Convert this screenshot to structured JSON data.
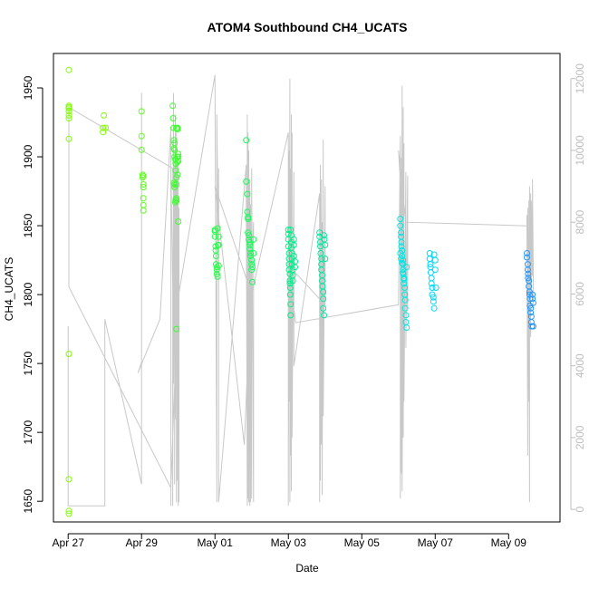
{
  "chart_data": {
    "type": "scatter",
    "title": "ATOM4 Southbound CH4_UCATS",
    "xlabel": "Date",
    "ylabel": "CH4_UCATS",
    "x_ticks": [
      {
        "label": "Apr 27",
        "day": 27
      },
      {
        "label": "Apr 29",
        "day": 29
      },
      {
        "label": "May 01",
        "day": 31
      },
      {
        "label": "May 03",
        "day": 33
      },
      {
        "label": "May 05",
        "day": 35
      },
      {
        "label": "May 07",
        "day": 37
      },
      {
        "label": "May 09",
        "day": 39
      }
    ],
    "y_ticks": [
      1650,
      1700,
      1750,
      1800,
      1850,
      1900,
      1950
    ],
    "y2_ticks": [
      0,
      2000,
      4000,
      6000,
      8000,
      10000,
      12000
    ],
    "xlim_day": [
      26.6,
      40.4
    ],
    "ylim": [
      1635,
      1975
    ],
    "y2lim": [
      -350,
      12700
    ],
    "colors": {
      "axis": "#000000",
      "right_axis": "#bdbdbd",
      "altitude_line": "#c8c8c8"
    },
    "series": [
      {
        "color": "#7fff00",
        "x": [
          27.02,
          27.02,
          27.02,
          27.02,
          27.02,
          27.02,
          27.02,
          27.02,
          27.02,
          27.02,
          27.02,
          27.02,
          27.95,
          27.95,
          27.97,
          28.02
        ],
        "y": [
          1963,
          1937,
          1935,
          1933,
          1928,
          1913,
          1757,
          1666,
          1643,
          1641,
          1936,
          1930,
          1921,
          1918,
          1930,
          1921
        ]
      },
      {
        "color": "#5cff1a",
        "x": [
          29.0,
          29.0,
          29.0,
          29.03,
          29.03,
          29.05,
          29.05,
          29.05,
          29.05,
          29.05,
          29.05
        ],
        "y": [
          1933,
          1915,
          1905,
          1887,
          1885,
          1880,
          1870,
          1865,
          1861,
          1878,
          1886
        ]
      },
      {
        "color": "#3aff2a",
        "x": [
          29.85,
          29.86,
          29.87,
          29.88,
          29.9,
          29.9,
          29.9,
          29.92,
          29.93,
          29.93,
          29.95,
          29.95,
          29.95,
          29.95,
          29.95,
          29.98,
          29.98,
          30.0,
          30.0,
          30.0,
          30.0,
          29.88,
          29.88,
          29.9,
          29.9,
          29.92,
          29.93,
          29.95,
          29.97,
          29.97,
          29.98
        ],
        "y": [
          1937,
          1928,
          1921,
          1912,
          1910,
          1905,
          1900,
          1898,
          1895,
          1890,
          1885,
          1880,
          1870,
          1868,
          1921,
          1921,
          1920,
          1902,
          1900,
          1897,
          1853,
          1906,
          1881,
          1878,
          1880,
          1867,
          1869,
          1775,
          1896,
          1900,
          1887
        ]
      },
      {
        "color": "#22ff44",
        "x": [
          31.0,
          31.0,
          31.0,
          31.02,
          31.02,
          31.03,
          31.03,
          31.05,
          31.05,
          31.05,
          31.07,
          31.07,
          31.08,
          31.1,
          31.1,
          31.1
        ],
        "y": [
          1847,
          1846,
          1842,
          1835,
          1832,
          1828,
          1822,
          1820,
          1818,
          1815,
          1813,
          1848,
          1836,
          1842,
          1836,
          1821
        ]
      },
      {
        "color": "#12ff55",
        "x": [
          31.85,
          31.85,
          31.88,
          31.88,
          31.9,
          31.9,
          31.9,
          31.92,
          31.92,
          31.95,
          31.95,
          31.95,
          31.97,
          31.97,
          32.0,
          32.0,
          32.0,
          32.02,
          32.02,
          32.05,
          32.05
        ],
        "y": [
          1912,
          1882,
          1873,
          1860,
          1856,
          1855,
          1845,
          1843,
          1840,
          1838,
          1836,
          1833,
          1830,
          1828,
          1825,
          1822,
          1818,
          1809,
          1820,
          1840,
          1830
        ]
      },
      {
        "color": "#00ee88",
        "x": [
          33.0,
          33.0,
          33.0,
          33.0,
          33.02,
          33.02,
          33.02,
          33.02,
          33.04,
          33.04,
          33.04,
          33.05,
          33.05,
          33.06,
          33.06,
          33.06,
          33.08,
          33.08,
          33.08,
          33.1,
          33.1,
          33.1,
          33.12,
          33.12,
          33.12,
          33.15,
          33.15,
          33.15,
          33.18,
          33.18
        ],
        "y": [
          1847,
          1844,
          1840,
          1835,
          1830,
          1826,
          1822,
          1818,
          1815,
          1810,
          1808,
          1805,
          1800,
          1793,
          1785,
          1847,
          1843,
          1838,
          1834,
          1830,
          1826,
          1822,
          1818,
          1814,
          1810,
          1840,
          1836,
          1828,
          1824,
          1820
        ]
      },
      {
        "color": "#00e8a0",
        "x": [
          33.85,
          33.85,
          33.87,
          33.87,
          33.88,
          33.9,
          33.9,
          33.9,
          33.92,
          33.92,
          33.93,
          33.95,
          33.95,
          33.95,
          33.97,
          33.97,
          33.98,
          34.0,
          34.0
        ],
        "y": [
          1845,
          1842,
          1838,
          1835,
          1830,
          1826,
          1822,
          1818,
          1814,
          1810,
          1806,
          1802,
          1797,
          1790,
          1785,
          1843,
          1840,
          1836,
          1826
        ]
      },
      {
        "color": "#00e8e8",
        "x": [
          36.05,
          36.05,
          36.07,
          36.07,
          36.08,
          36.08,
          36.1,
          36.1,
          36.12,
          36.12,
          36.13,
          36.13,
          36.15,
          36.15,
          36.17,
          36.17,
          36.18,
          36.18,
          36.2,
          36.2,
          36.22,
          36.22,
          36.05,
          36.07,
          36.1,
          36.12,
          36.15
        ],
        "y": [
          1855,
          1850,
          1845,
          1842,
          1838,
          1835,
          1832,
          1828,
          1825,
          1822,
          1818,
          1815,
          1812,
          1808,
          1805,
          1800,
          1796,
          1790,
          1785,
          1780,
          1776,
          1820,
          1830,
          1826,
          1823,
          1816,
          1811
        ]
      },
      {
        "color": "#00d8ff",
        "x": [
          36.85,
          36.85,
          36.87,
          36.87,
          36.88,
          36.9,
          36.9,
          36.92,
          36.92,
          36.95,
          36.95,
          36.97,
          36.97,
          37.0,
          37.0,
          37.02
        ],
        "y": [
          1830,
          1826,
          1822,
          1820,
          1816,
          1812,
          1808,
          1805,
          1800,
          1798,
          1795,
          1790,
          1829,
          1825,
          1818,
          1805
        ]
      },
      {
        "color": "#2299ff",
        "x": [
          39.5,
          39.5,
          39.52,
          39.52,
          39.53,
          39.53,
          39.55,
          39.55,
          39.57,
          39.57,
          39.58,
          39.58,
          39.6,
          39.6,
          39.62,
          39.62,
          39.63,
          39.65,
          39.65,
          39.67,
          39.67
        ],
        "y": [
          1830,
          1827,
          1822,
          1818,
          1815,
          1812,
          1810,
          1806,
          1802,
          1800,
          1797,
          1792,
          1790,
          1787,
          1784,
          1780,
          1777,
          1800,
          1797,
          1794,
          1777
        ]
      }
    ],
    "altitude_trace": {
      "note_units": "right axis",
      "x": [
        27.0,
        27.0,
        27.0,
        28.0,
        28.0,
        28.0,
        29.0,
        29.0,
        29.0,
        29.0,
        28.9,
        29.5,
        29.8,
        29.8,
        29.8,
        29.85,
        29.85,
        29.87,
        29.87,
        29.9,
        29.9,
        29.92,
        29.92,
        29.95,
        29.95,
        29.97,
        29.97,
        30.0,
        30.0,
        30.02,
        30.02,
        30.0,
        29.8,
        27.02,
        27.02,
        29.85,
        29.9,
        30.0,
        31.0,
        31.05,
        31.05,
        31.1,
        31.1,
        31.1,
        31.85,
        31.88,
        31.88,
        31.9,
        31.9,
        31.92,
        31.92,
        31.95,
        31.95,
        31.97,
        31.97,
        32.0,
        32.0,
        32.05,
        32.05,
        31.8,
        31.0,
        32.0,
        33.0,
        33.0,
        33.02,
        33.02,
        33.04,
        33.04,
        33.06,
        33.06,
        33.08,
        33.08,
        33.1,
        33.1,
        33.15,
        33.15,
        33.85,
        33.85,
        33.87,
        33.87,
        33.9,
        33.9,
        33.92,
        33.92,
        33.95,
        33.95,
        34.0,
        34.0,
        33.0,
        33.2,
        36.0,
        36.05,
        36.05,
        36.08,
        36.08,
        36.1,
        36.1,
        36.13,
        36.13,
        36.15,
        36.15,
        36.2,
        36.2,
        36.25,
        36.25,
        36.0,
        36.2,
        39.5,
        39.5,
        39.52,
        39.52,
        39.55,
        39.55,
        39.57,
        39.57,
        39.6,
        39.6,
        39.62,
        39.62,
        39.65,
        39.65,
        39.68
      ],
      "y": [
        100,
        5100,
        100,
        100,
        5300,
        5300,
        700,
        11600,
        700,
        4100,
        3800,
        5300,
        10600,
        100,
        9600,
        6200,
        100,
        11600,
        3500,
        9600,
        700,
        11000,
        2500,
        10500,
        200,
        9800,
        800,
        9600,
        100,
        8400,
        200,
        6200,
        600,
        6200,
        11200,
        9500,
        7200,
        5900,
        12100,
        200,
        11000,
        6200,
        9500,
        200,
        9600,
        100,
        11000,
        300,
        10500,
        200,
        10000,
        100,
        9200,
        200,
        8500,
        300,
        9500,
        200,
        8000,
        1800,
        9000,
        6000,
        10500,
        100,
        10000,
        3000,
        12000,
        200,
        9500,
        1500,
        11000,
        500,
        10500,
        2000,
        9400,
        4000,
        8800,
        200,
        9600,
        800,
        9200,
        1800,
        8000,
        400,
        10300,
        2600,
        9000,
        5700,
        6800,
        5200,
        5700,
        10400,
        300,
        9800,
        1000,
        11800,
        500,
        11200,
        2000,
        10200,
        3000,
        9400,
        4500,
        9300,
        5600,
        10000,
        8000,
        7900,
        8200,
        1500,
        8400,
        3000,
        8600,
        200,
        9000,
        4800,
        8800,
        6000,
        8600,
        6500,
        9200,
        5600
      ]
    }
  }
}
